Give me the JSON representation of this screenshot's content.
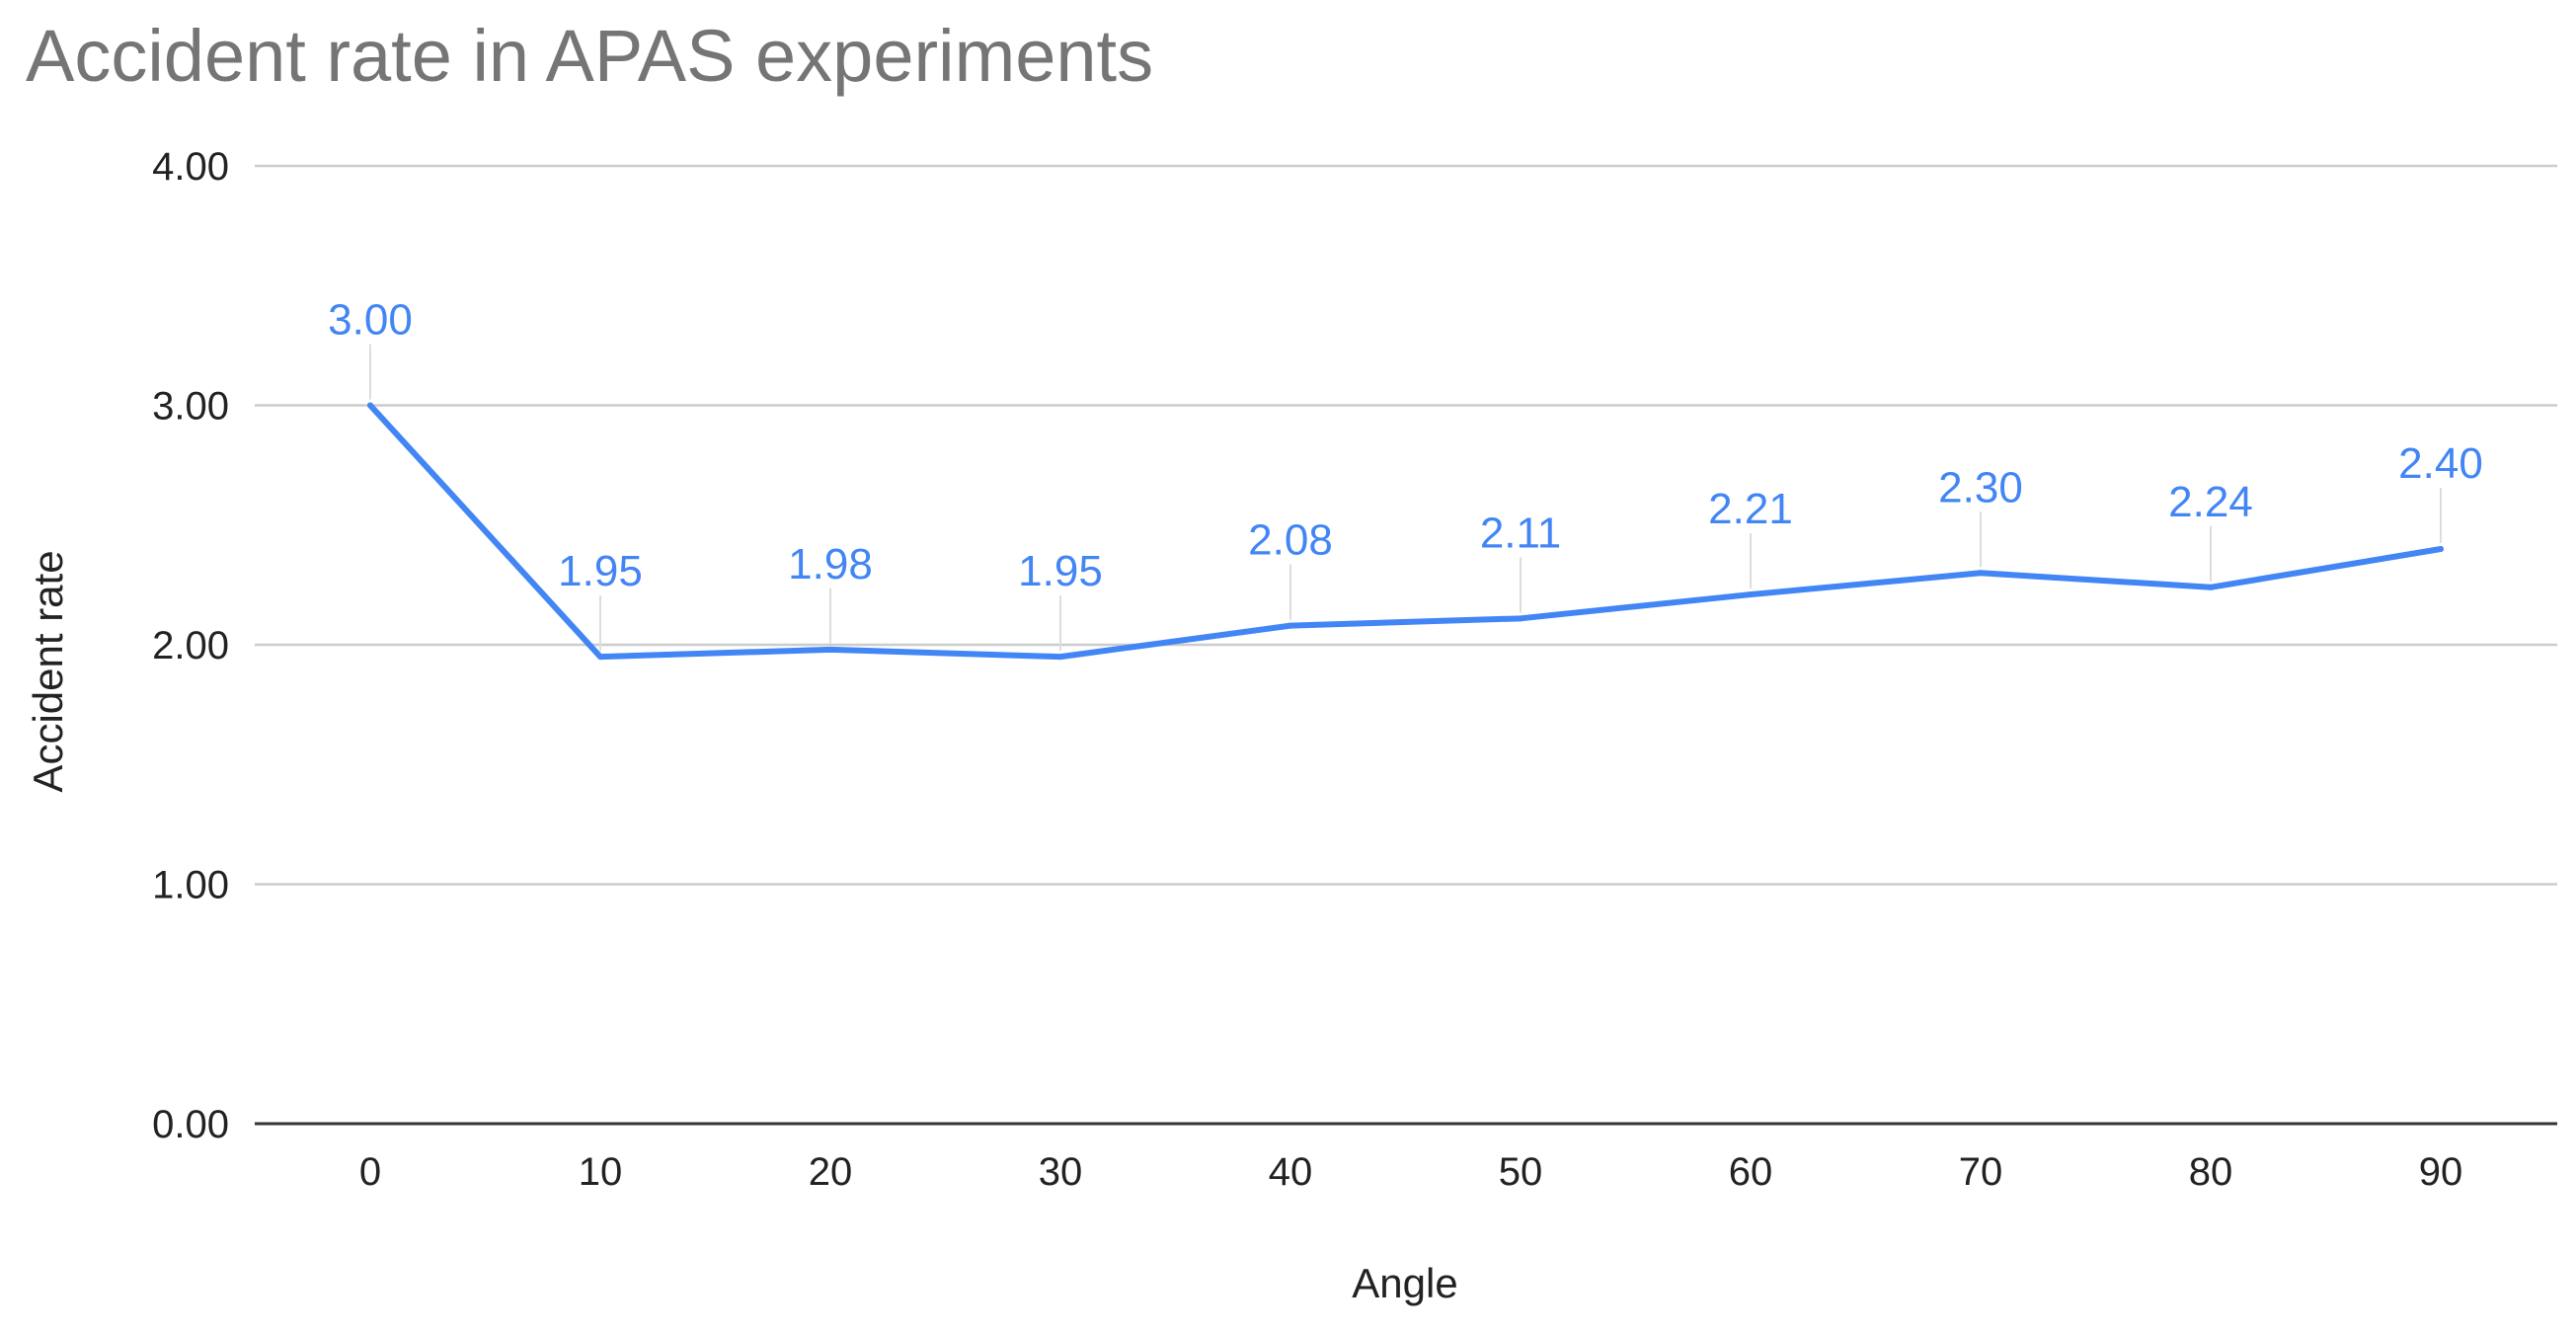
{
  "chart_data": {
    "type": "line",
    "title": "Accident rate in APAS experiments",
    "xlabel": "Angle",
    "ylabel": "Accident rate",
    "categories": [
      "0",
      "10",
      "20",
      "30",
      "40",
      "50",
      "60",
      "70",
      "80",
      "90"
    ],
    "series": [
      {
        "name": "Accident rate",
        "values": [
          3.0,
          1.95,
          1.98,
          1.95,
          2.08,
          2.11,
          2.21,
          2.3,
          2.24,
          2.4
        ],
        "labels": [
          "3.00",
          "1.95",
          "1.98",
          "1.95",
          "2.08",
          "2.11",
          "2.21",
          "2.30",
          "2.24",
          "2.40"
        ]
      }
    ],
    "yticks": [
      0,
      1,
      2,
      3,
      4
    ],
    "ytick_labels": [
      "0.00",
      "1.00",
      "2.00",
      "3.00",
      "4.00"
    ],
    "ylim": [
      0,
      4
    ],
    "grid": true,
    "legend": "none",
    "colors": {
      "line": "#4285f4",
      "label": "#4285f4"
    }
  }
}
